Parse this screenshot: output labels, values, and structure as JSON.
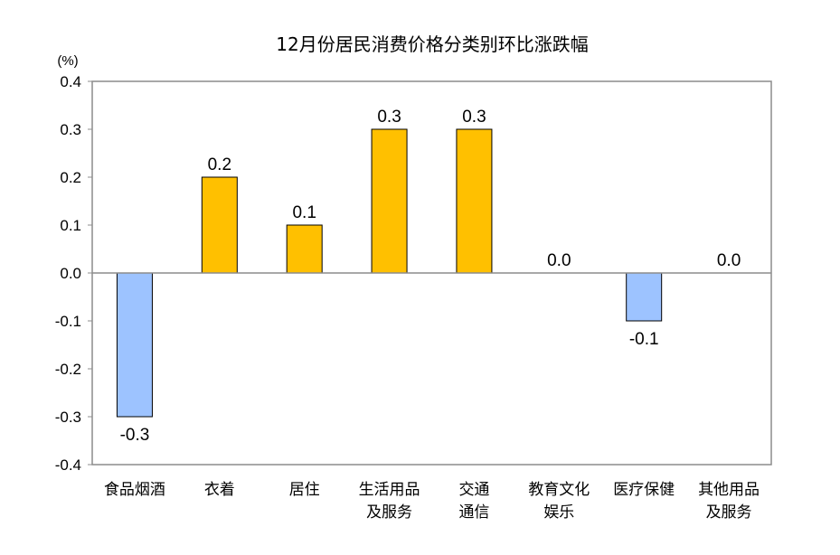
{
  "chart_data": {
    "type": "bar",
    "title": "12月份居民消费价格分类别环比涨跌幅",
    "unit_label": "(%)",
    "ylim": [
      -0.4,
      0.4
    ],
    "yticks": [
      "0.4",
      "0.3",
      "0.2",
      "0.1",
      "0.0",
      "-0.1",
      "-0.2",
      "-0.3",
      "-0.4"
    ],
    "categories": [
      [
        "食品烟酒"
      ],
      [
        "衣着"
      ],
      [
        "居住"
      ],
      [
        "生活用品",
        "及服务"
      ],
      [
        "交通",
        "通信"
      ],
      [
        "教育文化",
        "娱乐"
      ],
      [
        "医疗保健"
      ],
      [
        "其他用品",
        "及服务"
      ]
    ],
    "values": [
      -0.3,
      0.2,
      0.1,
      0.3,
      0.3,
      0.0,
      -0.1,
      0.0
    ],
    "data_labels": [
      "-0.3",
      "0.2",
      "0.1",
      "0.3",
      "0.3",
      "0.0",
      "-0.1",
      "0.0"
    ],
    "colors": {
      "positive": "#FFC000",
      "negative": "#9DC3FF",
      "bar_stroke": "#000000",
      "frame": "#8C8C8C"
    },
    "grid": false,
    "legend": "none"
  }
}
